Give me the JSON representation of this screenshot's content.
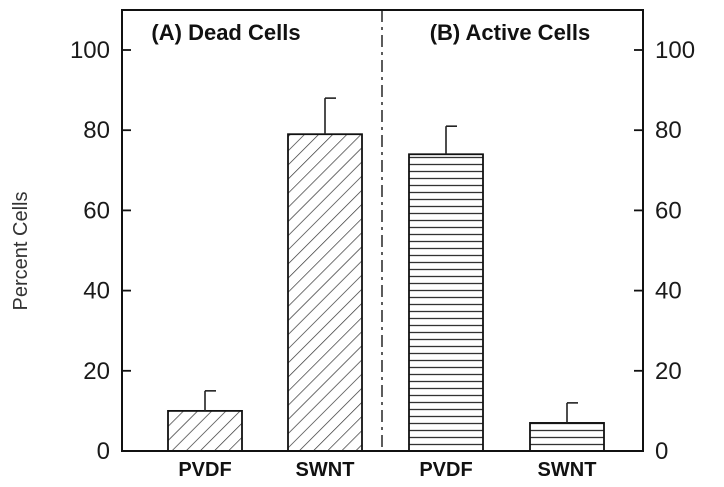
{
  "chart_data": {
    "type": "bar",
    "title": "",
    "ylabel": "Percent Cells",
    "ylim": [
      0,
      100
    ],
    "yticks": [
      0,
      20,
      40,
      60,
      80,
      100
    ],
    "ytick_labels": [
      "0",
      "20",
      "40",
      "60",
      "80",
      "100"
    ],
    "grid": false,
    "panels": [
      {
        "label": "(A) Dead Cells",
        "bars": [
          {
            "category": "PVDF",
            "value": 10,
            "error": 5,
            "pattern": "diagonal"
          },
          {
            "category": "SWNT",
            "value": 79,
            "error": 9,
            "pattern": "diagonal"
          }
        ]
      },
      {
        "label": "(B) Active Cells",
        "bars": [
          {
            "category": "PVDF",
            "value": 74,
            "error": 7,
            "pattern": "horizontal"
          },
          {
            "category": "SWNT",
            "value": 7,
            "error": 5,
            "pattern": "horizontal"
          }
        ]
      }
    ]
  }
}
